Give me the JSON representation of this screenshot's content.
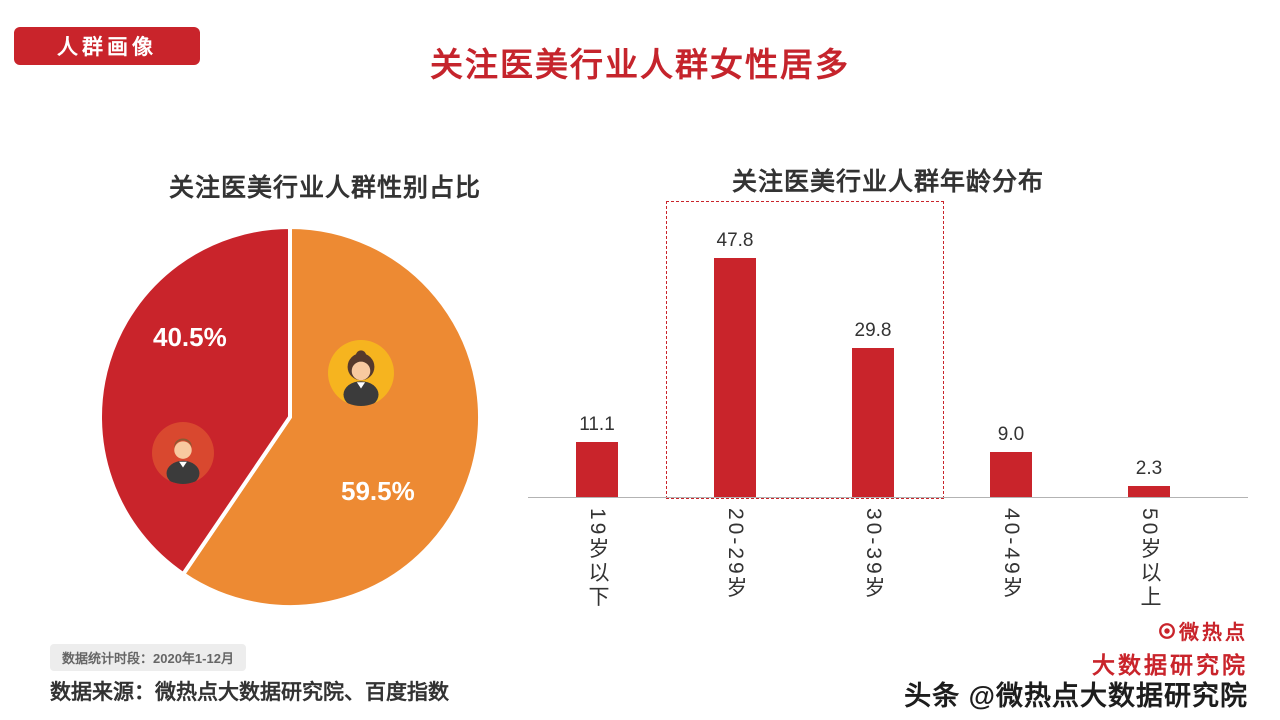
{
  "badge": {
    "label": "人群画像"
  },
  "title": "关注医美行业人群女性居多",
  "chart_data": [
    {
      "type": "pie",
      "title": "关注医美行业人群性别占比",
      "labels": [
        "女性",
        "男性"
      ],
      "values": [
        59.5,
        40.5
      ],
      "value_labels": [
        "59.5%",
        "40.5%"
      ],
      "colors": [
        "#ed8a33",
        "#c9242b"
      ],
      "legend_position": "none"
    },
    {
      "type": "bar",
      "title": "关注医美行业人群年龄分布",
      "categories": [
        "19岁以下",
        "20-29岁",
        "30-39岁",
        "40-49岁",
        "50岁以上"
      ],
      "values": [
        11.1,
        47.8,
        29.8,
        9.0,
        2.3
      ],
      "bar_color": "#c9242b",
      "ylim": [
        0,
        50
      ],
      "grid": false,
      "highlight_box_categories": [
        "20-29岁",
        "30-39岁"
      ]
    }
  ],
  "footer": {
    "period": "数据统计时段：2020年1-12月",
    "source": "数据来源：微热点大数据研究院、百度指数"
  },
  "logo": {
    "line1": "微热点",
    "line2": "大数据研究院",
    "color": "#c9242b"
  },
  "watermark": "头条 @微热点大数据研究院"
}
